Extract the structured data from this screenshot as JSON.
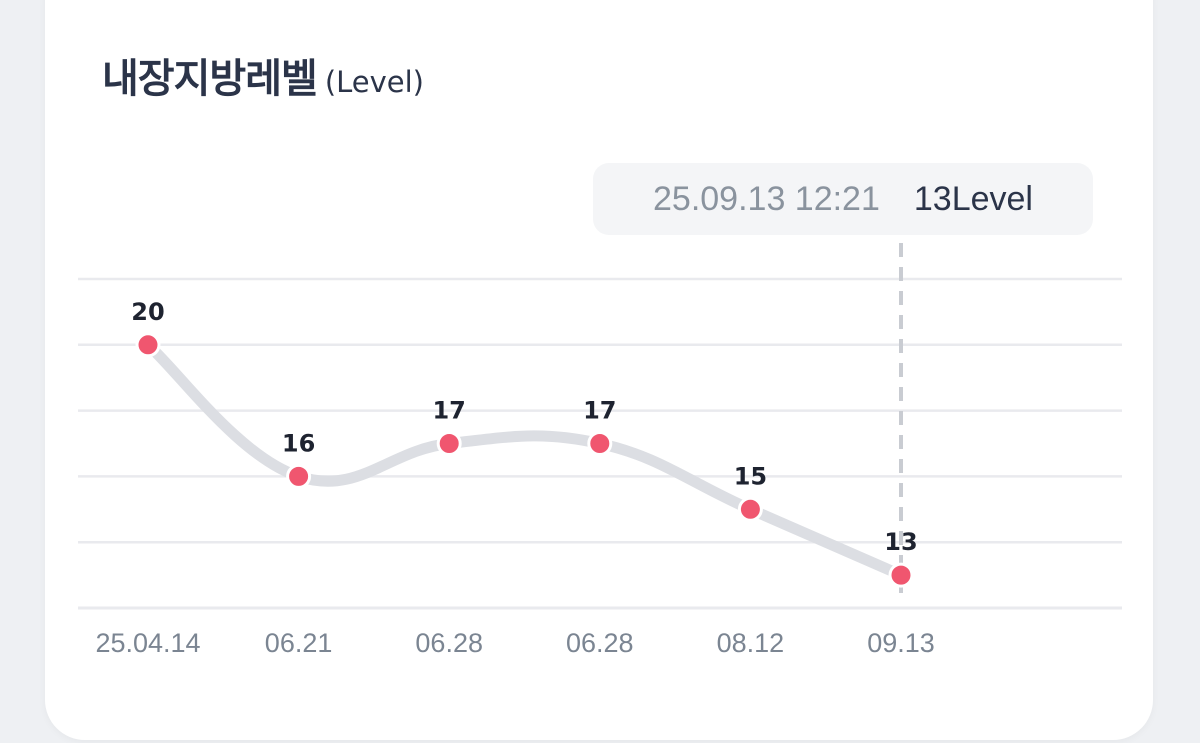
{
  "card": {
    "title": "내장지방레벨",
    "unit": "(Level)"
  },
  "tooltip": {
    "date": "25.09.13 12:21",
    "value": "13Level"
  },
  "colors": {
    "line": "#dcdee3",
    "point": "#f0566f",
    "grid": "#e9eaee",
    "guide": "#c9ccd2"
  },
  "chart_data": {
    "type": "line",
    "categories": [
      "25.04.14",
      "06.21",
      "06.28",
      "06.28",
      "08.12",
      "09.13"
    ],
    "values": [
      20,
      16,
      17,
      17,
      15,
      13
    ],
    "data_labels": [
      "20",
      "16",
      "17",
      "17",
      "15",
      "13"
    ],
    "title": "내장지방레벨",
    "ylabel": "(Level)",
    "ylim": [
      12,
      22
    ],
    "grid": true,
    "selected_index": 5
  }
}
